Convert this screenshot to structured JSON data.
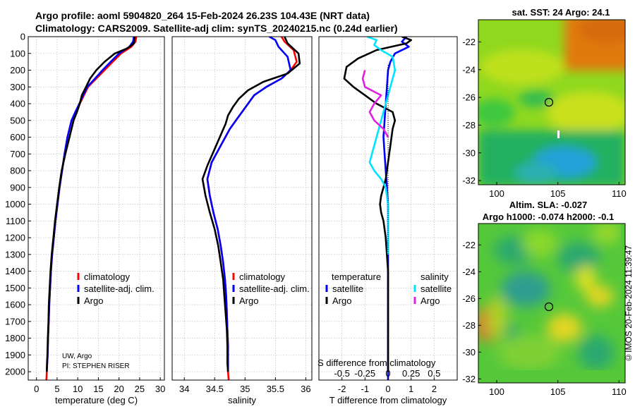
{
  "header": {
    "line1": "Argo profile: aoml 5904820_264 15-Feb-2024 26.23S 104.43E (NRT data)",
    "line2": "Climatology: CARS2009. Satellite-adj clim: synTS_20240215.nc (0.24d earlier)"
  },
  "credit": "©IMOS 20-Feb-2024 11:39:47",
  "pi": {
    "line1": "UW, Argo",
    "line2": "PI: STEPHEN RISER"
  },
  "colors": {
    "climatology": "#ff0000",
    "satellite": "#0000ff",
    "argo": "#000000",
    "sat_s": "#00e5ff",
    "argo_s": "#e020e0",
    "grid": "#b4b4b4"
  },
  "chart_data": [
    {
      "type": "line",
      "id": "temperature",
      "xlabel": "temperature (deg C)",
      "xlim": [
        -2,
        31
      ],
      "xticks": [
        0,
        5,
        10,
        15,
        20,
        25,
        30
      ],
      "ylim": [
        2050,
        0
      ],
      "yticks": [
        0,
        100,
        200,
        300,
        400,
        500,
        600,
        700,
        800,
        900,
        1000,
        1100,
        1200,
        1300,
        1400,
        1500,
        1600,
        1700,
        1800,
        1900,
        2000
      ],
      "legend": [
        "climatology",
        "satellite-adj. clim.",
        "Argo"
      ],
      "legend_position": "lower-right",
      "series": [
        {
          "name": "climatology",
          "color": "#ff0000",
          "x": [
            24.2,
            24.0,
            23.0,
            20.5,
            18.5,
            16.5,
            14.5,
            12.5,
            11.5,
            10.5,
            9.5,
            8.5,
            7.5,
            6.8,
            6.2,
            5.6,
            5.1,
            4.6,
            4.2,
            3.8,
            3.5,
            3.3,
            3.1,
            2.95,
            2.8,
            2.7,
            2.6,
            2.5,
            2.45,
            2.4
          ],
          "y": [
            0,
            30,
            60,
            100,
            150,
            200,
            250,
            300,
            350,
            400,
            450,
            500,
            600,
            700,
            800,
            900,
            1000,
            1100,
            1200,
            1300,
            1400,
            1500,
            1600,
            1700,
            1800,
            1900,
            1950,
            2000,
            2030,
            2050
          ]
        },
        {
          "name": "satellite-adj. clim.",
          "color": "#0000ff",
          "x": [
            23.6,
            23.4,
            22.5,
            20.0,
            18.0,
            16.0,
            14.2,
            12.3,
            11.3,
            10.4,
            9.4,
            8.5,
            7.5,
            6.8,
            6.2,
            5.6,
            5.1,
            4.6,
            4.2,
            3.8,
            3.5,
            3.3,
            3.1,
            2.95,
            2.8,
            2.7,
            2.6,
            2.5
          ],
          "y": [
            0,
            30,
            60,
            100,
            150,
            200,
            250,
            300,
            350,
            400,
            450,
            500,
            600,
            700,
            800,
            900,
            1000,
            1100,
            1200,
            1300,
            1400,
            1500,
            1600,
            1700,
            1800,
            1900,
            1950,
            2000
          ]
        },
        {
          "name": "Argo",
          "color": "#000000",
          "x": [
            23.8,
            23.6,
            22.0,
            19.0,
            16.5,
            14.5,
            13.0,
            12.0,
            11.0,
            10.5,
            9.8,
            9.0,
            8.0,
            7.0,
            6.1,
            5.5,
            5.0,
            4.5,
            4.1,
            3.7,
            3.4,
            3.2,
            3.0,
            2.9,
            2.75,
            2.65,
            2.55,
            2.5
          ],
          "y": [
            0,
            40,
            70,
            100,
            150,
            200,
            250,
            300,
            350,
            400,
            450,
            500,
            600,
            700,
            800,
            900,
            1000,
            1100,
            1200,
            1300,
            1400,
            1500,
            1600,
            1700,
            1800,
            1900,
            1950,
            2000
          ]
        }
      ]
    },
    {
      "type": "line",
      "id": "salinity",
      "xlabel": "salinity",
      "xlim": [
        33.8,
        36.1
      ],
      "xticks": [
        34,
        34.5,
        35,
        35.5,
        36
      ],
      "ylim": [
        2050,
        0
      ],
      "legend": [
        "climatology",
        "satellite-adj. clim.",
        "Argo"
      ],
      "legend_position": "lower-right",
      "series": [
        {
          "name": "climatology",
          "color": "#ff0000",
          "x": [
            35.6,
            35.65,
            35.8,
            35.85,
            35.75,
            35.6,
            35.35,
            35.15,
            35.05,
            34.95,
            34.85,
            34.75,
            34.6,
            34.45,
            34.38,
            34.42,
            34.48,
            34.55,
            34.6,
            34.64,
            34.67,
            34.69,
            34.7,
            34.71,
            34.72,
            34.72,
            34.72,
            34.73
          ],
          "y": [
            0,
            30,
            80,
            150,
            200,
            250,
            300,
            350,
            400,
            450,
            500,
            550,
            650,
            750,
            850,
            950,
            1050,
            1150,
            1250,
            1350,
            1450,
            1550,
            1650,
            1750,
            1850,
            1950,
            2000,
            2050
          ]
        },
        {
          "name": "satellite-adj. clim.",
          "color": "#0000ff",
          "x": [
            35.4,
            35.5,
            35.55,
            35.7,
            35.75,
            35.6,
            35.35,
            35.15,
            35.05,
            34.95,
            34.85,
            34.75,
            34.6,
            34.45,
            34.38,
            34.42,
            34.48,
            34.55,
            34.6,
            34.64,
            34.67,
            34.69,
            34.7,
            34.71,
            34.72,
            34.72,
            34.72
          ],
          "y": [
            0,
            20,
            60,
            120,
            200,
            250,
            300,
            350,
            400,
            450,
            500,
            550,
            650,
            750,
            850,
            950,
            1050,
            1150,
            1250,
            1350,
            1450,
            1550,
            1650,
            1750,
            1850,
            1950,
            2000
          ]
        },
        {
          "name": "Argo",
          "color": "#000000",
          "x": [
            35.65,
            35.7,
            35.88,
            35.9,
            35.7,
            35.3,
            35.05,
            34.9,
            34.8,
            34.72,
            34.68,
            34.62,
            34.5,
            34.38,
            34.3,
            34.35,
            34.42,
            34.5,
            34.56,
            34.6,
            34.64,
            34.66,
            34.68,
            34.7,
            34.71,
            34.71,
            34.72
          ],
          "y": [
            0,
            40,
            100,
            160,
            220,
            270,
            320,
            370,
            420,
            470,
            520,
            570,
            670,
            770,
            850,
            950,
            1050,
            1150,
            1250,
            1350,
            1450,
            1550,
            1650,
            1750,
            1850,
            1950,
            2000
          ]
        }
      ]
    },
    {
      "type": "line",
      "id": "difference",
      "xlabel": "T difference from climatology",
      "xlabel_top": "S difference from climatology",
      "xlim": [
        -3.0,
        3.0
      ],
      "xticks": [
        -2,
        -1,
        0,
        1,
        2
      ],
      "xticks_top_labels": [
        "-0.5",
        "-0.25",
        "0",
        "0.25",
        "0.5"
      ],
      "xticks_top_positions": [
        -2,
        -1,
        0,
        1,
        2
      ],
      "ylim": [
        2050,
        0
      ],
      "legend_left_title": "temperature",
      "legend_right_title": "salinity",
      "legend": [
        "satellite",
        "Argo",
        "satellite",
        "Argo"
      ],
      "series": [
        {
          "name": "T satellite",
          "color": "#0000ff",
          "x": [
            0.8,
            0.6,
            0.9,
            0.3,
            0.1,
            0.0,
            -0.05,
            -0.1,
            -0.15,
            -0.2,
            -0.15,
            -0.1,
            -0.05,
            0.0,
            0.0,
            0.0,
            0.0,
            0.0,
            0.0,
            0.0,
            0.0,
            0.0
          ],
          "y": [
            0,
            30,
            60,
            100,
            150,
            200,
            300,
            400,
            500,
            600,
            700,
            800,
            900,
            1000,
            1100,
            1200,
            1400,
            1600,
            1800,
            1900,
            2000,
            2050
          ]
        },
        {
          "name": "T Argo",
          "color": "#000000",
          "x": [
            0.6,
            1.0,
            0.8,
            -0.5,
            -1.3,
            -1.8,
            -1.9,
            -1.5,
            -1.0,
            -0.5,
            0.2,
            0.3,
            0.2,
            0.1,
            0.0,
            -0.1,
            -0.2,
            -0.3,
            -0.35,
            -0.3,
            -0.2,
            -0.1,
            0.0,
            0.0,
            0.0,
            0.0
          ],
          "y": [
            0,
            20,
            40,
            80,
            130,
            180,
            250,
            300,
            350,
            400,
            450,
            500,
            550,
            650,
            750,
            850,
            900,
            950,
            1000,
            1050,
            1100,
            1200,
            1400,
            1700,
            1900,
            2000
          ]
        },
        {
          "name": "S satellite",
          "color": "#00e5ff",
          "x": [
            -0.9,
            -0.5,
            -0.6,
            -0.3,
            0.2,
            0.3,
            0.0,
            -0.3,
            -0.6,
            -0.8,
            -0.6,
            -0.3,
            -0.1,
            0.0,
            0.0,
            0.0
          ],
          "y": [
            0,
            20,
            50,
            80,
            120,
            200,
            350,
            500,
            650,
            750,
            800,
            850,
            900,
            1000,
            1200,
            1300
          ]
        },
        {
          "name": "S Argo",
          "color": "#e020e0",
          "x": [
            -1.0,
            -1.1,
            -1.0,
            -0.3,
            -0.6,
            -0.8,
            -0.6,
            -0.2,
            0.0
          ],
          "y": [
            200,
            250,
            300,
            350,
            400,
            450,
            500,
            550,
            600
          ]
        }
      ]
    },
    {
      "type": "heatmap",
      "id": "sst-map",
      "title": "sat. SST: 24 Argo: 24.1",
      "xlim": [
        98.5,
        110.5
      ],
      "xticks": [
        100,
        105,
        110
      ],
      "ylim": [
        -32.3,
        -20.4
      ],
      "yticks": [
        -22,
        -24,
        -26,
        -28,
        -30,
        -32
      ],
      "marker_lon": 104.43,
      "marker_lat": -26.23
    },
    {
      "type": "heatmap",
      "id": "sla-map",
      "title_line1": "Altim. SLA: -0.027",
      "title_line2": "Argo h1000: -0.074 h2000: -0.1",
      "xlim": [
        98.5,
        110.5
      ],
      "xticks": [
        100,
        105,
        110
      ],
      "ylim": [
        -32.3,
        -20.4
      ],
      "yticks": [
        -22,
        -24,
        -26,
        -28,
        -30,
        -32
      ],
      "marker_lon": 104.43,
      "marker_lat": -26.23
    }
  ]
}
